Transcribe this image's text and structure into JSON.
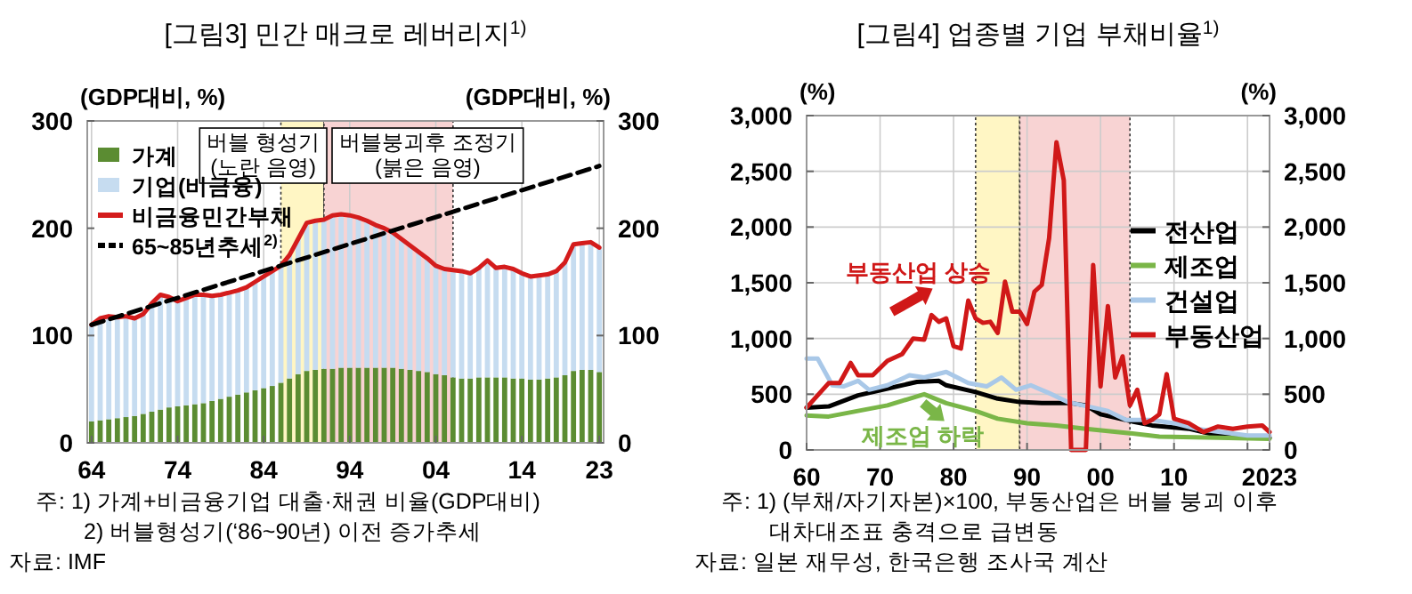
{
  "chart_data": [
    {
      "type": "bar",
      "title": "[그림3] 민간 매크로 레버리지$^{1)}$",
      "ylabel": "(GDP대비, %)",
      "y2label": "(GDP대비, %)",
      "stacked": true,
      "x": [
        1964,
        1965,
        1966,
        1967,
        1968,
        1969,
        1970,
        1971,
        1972,
        1973,
        1974,
        1975,
        1976,
        1977,
        1978,
        1979,
        1980,
        1981,
        1982,
        1983,
        1984,
        1985,
        1986,
        1987,
        1988,
        1989,
        1990,
        1991,
        1992,
        1993,
        1994,
        1995,
        1996,
        1997,
        1998,
        1999,
        2000,
        2001,
        2002,
        2003,
        2004,
        2005,
        2006,
        2007,
        2008,
        2009,
        2010,
        2011,
        2012,
        2013,
        2014,
        2015,
        2016,
        2017,
        2018,
        2019,
        2020,
        2021,
        2022,
        2023
      ],
      "xlim": [
        1963.5,
        2023.5
      ],
      "xticks": [
        {
          "value": 1964,
          "label": "64"
        },
        {
          "value": 1974,
          "label": "74"
        },
        {
          "value": 1984,
          "label": "84"
        },
        {
          "value": 1994,
          "label": "94"
        },
        {
          "value": 2004,
          "label": "04"
        },
        {
          "value": 2014,
          "label": "14"
        },
        {
          "value": 2023,
          "label": "23"
        }
      ],
      "ylim": [
        0,
        300
      ],
      "yticks": [
        0,
        100,
        200,
        300
      ],
      "y2lim": [
        0,
        300
      ],
      "y2ticks": [
        0,
        100,
        200,
        300
      ],
      "grid": "x",
      "legend": "top left",
      "series": [
        {
          "name": "가계",
          "color": "#5b8c32",
          "values": [
            20,
            21,
            22,
            23,
            24,
            25,
            27,
            29,
            31,
            33,
            34,
            35,
            36,
            37,
            39,
            41,
            43,
            45,
            47,
            49,
            51,
            53,
            56,
            60,
            64,
            67,
            68,
            69,
            69,
            70,
            70,
            70,
            70,
            70,
            70,
            70,
            69,
            68,
            67,
            66,
            64,
            63,
            61,
            60,
            60,
            61,
            61,
            61,
            61,
            60,
            60,
            59,
            59,
            60,
            61,
            63,
            67,
            68,
            68,
            66
          ]
        },
        {
          "name": "기업(비금융)",
          "color": "#c6dcf0",
          "values": [
            90,
            95,
            96,
            94,
            94,
            91,
            93,
            101,
            107,
            103,
            98,
            100,
            102,
            101,
            98,
            97,
            97,
            97,
            98,
            101,
            104,
            107,
            109,
            115,
            126,
            138,
            139,
            139,
            143,
            143,
            142,
            140,
            137,
            133,
            130,
            126,
            121,
            116,
            111,
            106,
            101,
            99,
            100,
            100,
            98,
            102,
            109,
            102,
            103,
            102,
            98,
            96,
            97,
            97,
            99,
            105,
            118,
            118,
            119,
            116
          ]
        },
        {
          "name": "비금융민간부채",
          "type": "line",
          "color": "#d41c1c",
          "values": [
            110,
            116,
            118,
            117,
            118,
            116,
            120,
            130,
            138,
            136,
            132,
            135,
            138,
            138,
            137,
            138,
            140,
            142,
            145,
            150,
            155,
            160,
            165,
            175,
            190,
            205,
            207,
            208,
            212,
            213,
            212,
            210,
            207,
            203,
            200,
            196,
            190,
            184,
            178,
            172,
            165,
            162,
            161,
            160,
            158,
            163,
            170,
            163,
            164,
            162,
            158,
            155,
            156,
            157,
            160,
            168,
            185,
            186,
            187,
            182
          ]
        },
        {
          "name": "65~85년추세$^{2)}$",
          "type": "line",
          "color": "#000000",
          "line_style": "dashed",
          "x": [
            1964,
            2023
          ],
          "values": [
            110,
            258
          ]
        }
      ],
      "bands": [
        {
          "axis": "x",
          "from": 1986,
          "to": 1991,
          "label": "버블 형성기\n(노란 음영)",
          "color": "#fff6c4"
        },
        {
          "axis": "x",
          "from": 1991,
          "to": 2006,
          "label": "버블붕괴후 조정기\n(붉은 음영)",
          "color": "#f8d3d3"
        }
      ],
      "annotations": [
        "주: 1) 가계+비금융기업 대출·채권 비율(GDP대비)",
        "2) 버블형성기(‘86~90년) 이전 증가추세",
        "자료: IMF"
      ]
    },
    {
      "type": "line",
      "title": "[그림4] 업종별 기업 부채비율$^{1)}$",
      "ylabel": "(%)",
      "y2label": "(%)",
      "xlim": [
        1960,
        2023
      ],
      "xticks": [
        {
          "value": 1960,
          "label": "60"
        },
        {
          "value": 1970,
          "label": "70"
        },
        {
          "value": 1980,
          "label": "80"
        },
        {
          "value": 1990,
          "label": "90"
        },
        {
          "value": 2000,
          "label": "00"
        },
        {
          "value": 2010,
          "label": "10"
        },
        {
          "value": 2020,
          "label": null
        },
        {
          "value": 2023,
          "label": "2023"
        }
      ],
      "ylim": [
        0,
        3000
      ],
      "yticks": [
        0,
        500,
        {
          "value": 1000,
          "label": "1,000"
        },
        {
          "value": 1500,
          "label": "1,500"
        },
        {
          "value": 2000,
          "label": "2,000"
        },
        {
          "value": 2500,
          "label": "2,500"
        },
        {
          "value": 3000,
          "label": "3,000"
        }
      ],
      "y2lim": [
        0,
        3000
      ],
      "y2ticks": [
        0,
        500,
        {
          "value": 1000,
          "label": "1,000"
        },
        {
          "value": 1500,
          "label": "1,500"
        },
        {
          "value": 2000,
          "label": "2,000"
        },
        {
          "value": 2500,
          "label": "2,500"
        },
        {
          "value": 3000,
          "label": "3,000"
        }
      ],
      "grid": true,
      "legend": "right",
      "series": [
        {
          "name": "전산업",
          "color": "#000000",
          "x": [
            1960,
            1963,
            1967,
            1971,
            1975,
            1978,
            1979,
            1983,
            1986,
            1989,
            1992,
            1996,
            1998,
            2000,
            2004,
            2007,
            2012,
            2016,
            2020,
            2023
          ],
          "values": [
            380,
            390,
            490,
            550,
            610,
            620,
            580,
            520,
            460,
            430,
            420,
            420,
            400,
            320,
            260,
            220,
            190,
            130,
            110,
            110
          ]
        },
        {
          "name": "제조업",
          "color": "#7ab648",
          "x": [
            1960,
            1963,
            1967,
            1971,
            1975,
            1976,
            1979,
            1983,
            1986,
            1990,
            1994,
            1998,
            2004,
            2008,
            2016,
            2023
          ],
          "values": [
            310,
            300,
            350,
            400,
            480,
            500,
            420,
            350,
            280,
            240,
            220,
            190,
            150,
            120,
            110,
            100
          ]
        },
        {
          "name": "건설업",
          "color": "#a9c8e8",
          "x": [
            1960,
            1961.5,
            1962.5,
            1963.5,
            1965,
            1967,
            1968.5,
            1971,
            1974,
            1976,
            1979,
            1982,
            1984.5,
            1986.5,
            1988.5,
            1990.5,
            1993,
            1995.5,
            1999,
            2001,
            2003.5,
            2007,
            2010,
            2013,
            2016.5,
            2020,
            2023
          ],
          "values": [
            820,
            820,
            700,
            580,
            570,
            620,
            540,
            580,
            670,
            650,
            700,
            600,
            570,
            650,
            540,
            580,
            510,
            430,
            380,
            350,
            270,
            270,
            240,
            190,
            160,
            130,
            130
          ]
        },
        {
          "name": "부동산업",
          "color": "#d01818",
          "x": [
            1960,
            1963,
            1964.5,
            1966,
            1967,
            1969,
            1971,
            1973,
            1974.5,
            1976,
            1977,
            1978,
            1979,
            1980,
            1981,
            1982,
            1983,
            1984,
            1985,
            1986,
            1987,
            1988,
            1989,
            1990,
            1991,
            1992,
            1993,
            1994,
            1995,
            1996,
            1998,
            1999,
            2000,
            2001,
            2002,
            2003,
            2004,
            2005,
            2006,
            2007,
            2008,
            2009,
            2010,
            2012,
            2014,
            2016,
            2018,
            2020,
            2022,
            2023
          ],
          "values": [
            380,
            600,
            600,
            780,
            670,
            670,
            800,
            860,
            1000,
            990,
            1210,
            1150,
            1180,
            930,
            910,
            1340,
            1180,
            1140,
            1150,
            1050,
            1510,
            1240,
            1240,
            1130,
            1420,
            1480,
            1900,
            2760,
            2420,
            0,
            0,
            1660,
            570,
            1290,
            650,
            840,
            400,
            540,
            240,
            270,
            320,
            680,
            280,
            240,
            160,
            210,
            190,
            210,
            220,
            160
          ]
        }
      ],
      "bands": [
        {
          "axis": "x",
          "from": 1983,
          "to": 1989,
          "color": "#fff6c4"
        },
        {
          "axis": "x",
          "from": 1989,
          "to": 2004,
          "color": "#f8d3d3"
        }
      ],
      "annotations": [
        {
          "text": "부동산업 상승",
          "x": 1974.5,
          "y": 1000
        },
        {
          "text": "제조업 하락",
          "x": 1979,
          "y": 420
        },
        "주: 1) (부채/자기자본)×100, 부동산업은 버블 붕괴 이후\n대차대조표 충격으로 급변동",
        "자료: 일본 재무성, 한국은행 조사국 계산"
      ]
    }
  ]
}
